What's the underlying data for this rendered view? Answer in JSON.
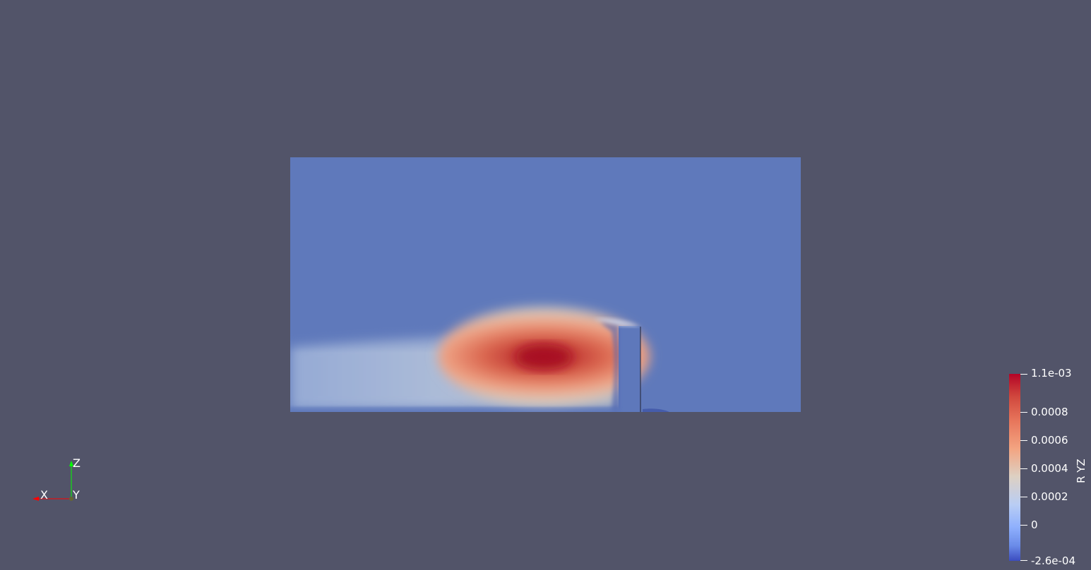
{
  "scalar_bar": {
    "title": "R YZ",
    "max_label": "1.1e-03",
    "min_label": "-2.6e-04",
    "ticks": [
      {
        "label": "0.0008",
        "value": 0.0008
      },
      {
        "label": "0.0006",
        "value": 0.0006
      },
      {
        "label": "0.0004",
        "value": 0.0004
      },
      {
        "label": "0.0002",
        "value": 0.0002
      },
      {
        "label": "0",
        "value": 0
      }
    ],
    "range": [
      -0.00026,
      0.0011
    ],
    "colormap": [
      "#3b4cc0",
      "#6a8be8",
      "#8fb0fd",
      "#b9cdf4",
      "#ddd0c3",
      "#f3a481",
      "#e7755b",
      "#d0473d",
      "#b40426"
    ]
  },
  "orientation_axes": {
    "x_label": "X",
    "y_label": "Y",
    "z_label": "Z",
    "x_color": "#ff0000",
    "y_color": "#ffff00",
    "z_color": "#00ff00"
  },
  "colors": {
    "background": "#525469",
    "field_base": "#5f79bb"
  }
}
